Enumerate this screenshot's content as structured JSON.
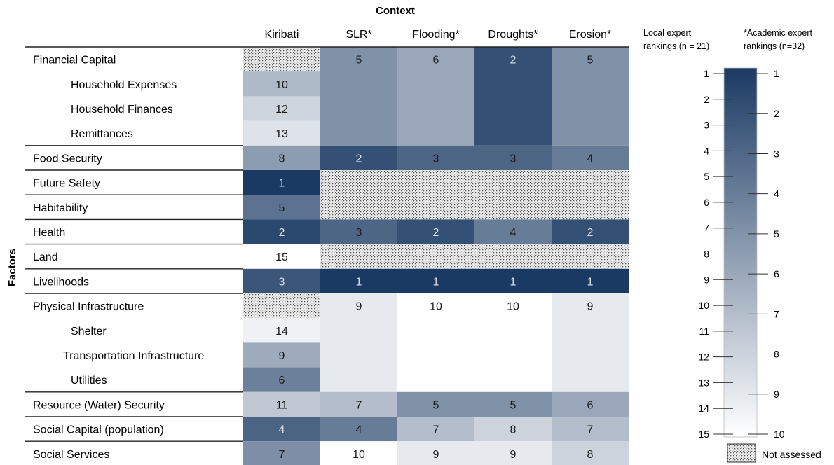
{
  "chart_data": {
    "type": "heatmap",
    "context_label": "Context",
    "factors_label": "Factors",
    "columns": [
      "Kiribati",
      "SLR*",
      "Flooding*",
      "Droughts*",
      "Erosion*"
    ],
    "groups": [
      {
        "label": "Financial Capital",
        "kiribati": null,
        "others": [
          5,
          6,
          2,
          5
        ],
        "subrows": [
          {
            "label": "Household Expenses",
            "kiribati": 10
          },
          {
            "label": "Household Finances",
            "kiribati": 12
          },
          {
            "label": "Remittances",
            "kiribati": 13
          }
        ]
      },
      {
        "label": "Food Security",
        "kiribati": 8,
        "others": [
          2,
          3,
          3,
          4
        ]
      },
      {
        "label": "Future Safety",
        "kiribati": 1,
        "others": [
          null,
          null,
          null,
          null
        ]
      },
      {
        "label": "Habitability",
        "kiribati": 5,
        "others": [
          null,
          null,
          null,
          null
        ]
      },
      {
        "label": "Health",
        "kiribati": 2,
        "others": [
          3,
          2,
          4,
          2
        ]
      },
      {
        "label": "Land",
        "kiribati": 15,
        "others": [
          null,
          null,
          null,
          null
        ]
      },
      {
        "label": "Livelihoods",
        "kiribati": 3,
        "others": [
          1,
          1,
          1,
          1
        ]
      },
      {
        "label": "Physical Infrastructure",
        "kiribati": null,
        "others": [
          9,
          10,
          10,
          9
        ],
        "subrows": [
          {
            "label": "Shelter",
            "kiribati": 14
          },
          {
            "label": "Transportation Infrastructure",
            "kiribati": 9
          },
          {
            "label": "Utilities",
            "kiribati": 6
          }
        ]
      },
      {
        "label": "Resource (Water) Security",
        "kiribati": 11,
        "others": [
          7,
          5,
          5,
          6
        ]
      },
      {
        "label": "Social Capital (population)",
        "kiribati": 4,
        "others": [
          4,
          7,
          8,
          7
        ]
      },
      {
        "label": "Social Services",
        "kiribati": 7,
        "others": [
          10,
          9,
          9,
          8
        ]
      }
    ],
    "legend": {
      "local_title": [
        "Local expert",
        "rankings (n = 21)"
      ],
      "academic_title": [
        "*Academic expert",
        "rankings (n=32)"
      ],
      "local_ticks": [
        1,
        2,
        3,
        4,
        5,
        6,
        7,
        8,
        9,
        10,
        11,
        12,
        13,
        14,
        15
      ],
      "academic_ticks": [
        1,
        2,
        3,
        4,
        5,
        6,
        7,
        8,
        9,
        10
      ],
      "not_assessed_label": "Not assessed"
    },
    "scale": {
      "local_max": 15,
      "academic_max": 10
    },
    "colors": {
      "dark": "#1b3a63",
      "light": "#ffffff",
      "dark_text": "#1a1a1a",
      "light_text": "#d8e0ea"
    }
  }
}
